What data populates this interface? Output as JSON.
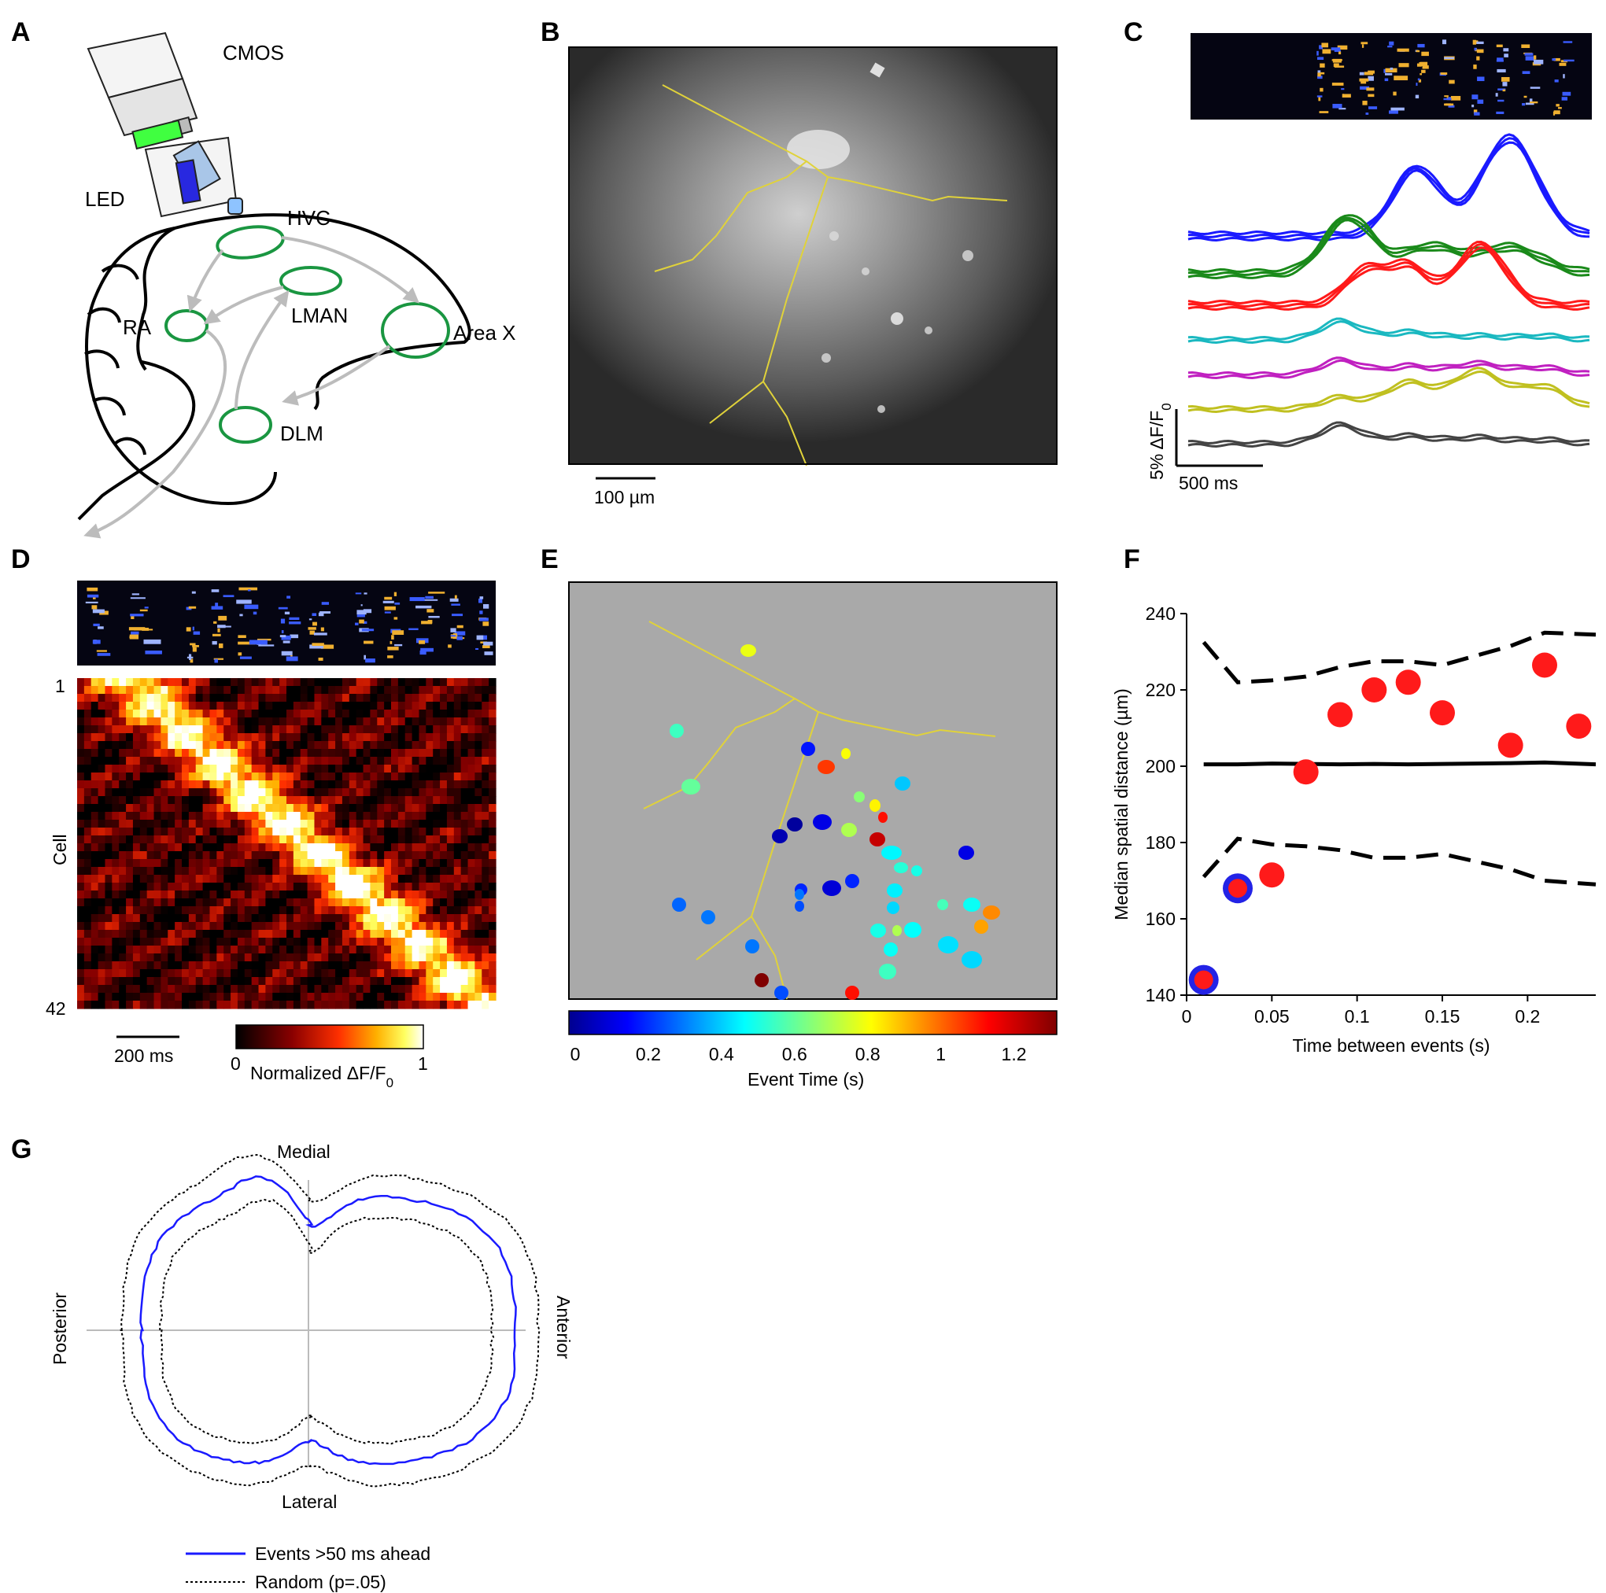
{
  "colors": {
    "green": "#1a9641",
    "grey_arrow": "#bcbcbc",
    "yellow_line": "#e0d23a",
    "red_dot": "#ff1a1a",
    "blue_ring": "#2323e6",
    "trace_colors": [
      "#1a1aff",
      "#1a8a1a",
      "#ff1a1a",
      "#1ab8c0",
      "#c020c0",
      "#c0c020",
      "#444444"
    ]
  },
  "panels": {
    "A": {
      "label": "A",
      "camera": "CMOS",
      "led": "LED",
      "regions": [
        "HVC",
        "RA",
        "LMAN",
        "Area X",
        "DLM"
      ]
    },
    "B": {
      "label": "B",
      "scale_bar": "100 µm"
    },
    "C": {
      "label": "C",
      "scale_y": "5%  ΔF/F",
      "scale_y_sub": "0",
      "scale_x": "500 ms"
    },
    "D": {
      "label": "D",
      "row_top": "1",
      "row_bottom": "42",
      "ylabel": "Cell",
      "scale_x": "200 ms",
      "cbar_min": "0",
      "cbar_max": "1",
      "cbar_label": "Normalized ΔF/F",
      "cbar_label_sub": "0"
    },
    "E": {
      "label": "E",
      "cbar_ticks": [
        "0",
        "0.2",
        "0.4",
        "0.6",
        "0.8",
        "1",
        "1.2"
      ],
      "cbar_label": "Event Time (s)"
    },
    "F": {
      "label": "F"
    },
    "G": {
      "label": "G",
      "top": "Medial",
      "bottom": "Lateral",
      "left": "Posterior",
      "right": "Anterior",
      "legend": [
        "Events >50 ms ahead",
        "Random (p=.05)"
      ]
    }
  },
  "chart_data": [
    {
      "type": "scatter",
      "panel": "F",
      "xlabel": "Time between events (s)",
      "ylabel": "Median spatial distance (µm)",
      "xlim": [
        0,
        0.24
      ],
      "ylim": [
        140,
        240
      ],
      "xticks": [
        0,
        0.05,
        0.1,
        0.15,
        0.2
      ],
      "yticks": [
        140,
        160,
        180,
        200,
        220,
        240
      ],
      "xtick_labels": [
        "0",
        "0.05",
        "0.1",
        "0.15",
        "0.2"
      ],
      "ytick_labels": [
        "140",
        "160",
        "180",
        "200",
        "220",
        "240"
      ],
      "points": [
        {
          "x": 0.01,
          "y": 144,
          "ring": true
        },
        {
          "x": 0.03,
          "y": 168,
          "ring": true
        },
        {
          "x": 0.05,
          "y": 171.5,
          "ring": false
        },
        {
          "x": 0.07,
          "y": 198.5,
          "ring": false
        },
        {
          "x": 0.09,
          "y": 213.5,
          "ring": false
        },
        {
          "x": 0.11,
          "y": 220,
          "ring": false
        },
        {
          "x": 0.13,
          "y": 222,
          "ring": false
        },
        {
          "x": 0.15,
          "y": 214,
          "ring": false
        },
        {
          "x": 0.19,
          "y": 205.5,
          "ring": false
        },
        {
          "x": 0.21,
          "y": 226.5,
          "ring": false
        },
        {
          "x": 0.23,
          "y": 210.5,
          "ring": false
        }
      ],
      "mean_line": {
        "x": [
          0.01,
          0.03,
          0.05,
          0.07,
          0.09,
          0.11,
          0.13,
          0.15,
          0.17,
          0.19,
          0.21,
          0.24
        ],
        "y": [
          200.5,
          200.5,
          200.7,
          200.6,
          200.5,
          200.6,
          200.5,
          200.6,
          200.7,
          200.8,
          201,
          200.5
        ]
      },
      "upper_bound": {
        "x": [
          0.01,
          0.03,
          0.05,
          0.07,
          0.09,
          0.11,
          0.13,
          0.15,
          0.17,
          0.19,
          0.21,
          0.24
        ],
        "y": [
          232.5,
          222,
          222.5,
          223.5,
          226,
          227.5,
          227.5,
          226.5,
          229,
          231.5,
          235,
          234.5
        ]
      },
      "lower_bound": {
        "x": [
          0.01,
          0.03,
          0.05,
          0.07,
          0.09,
          0.11,
          0.13,
          0.15,
          0.17,
          0.19,
          0.21,
          0.24
        ],
        "y": [
          171,
          181,
          179.5,
          179,
          178,
          176,
          176,
          177,
          175,
          173,
          170,
          169
        ]
      }
    }
  ]
}
